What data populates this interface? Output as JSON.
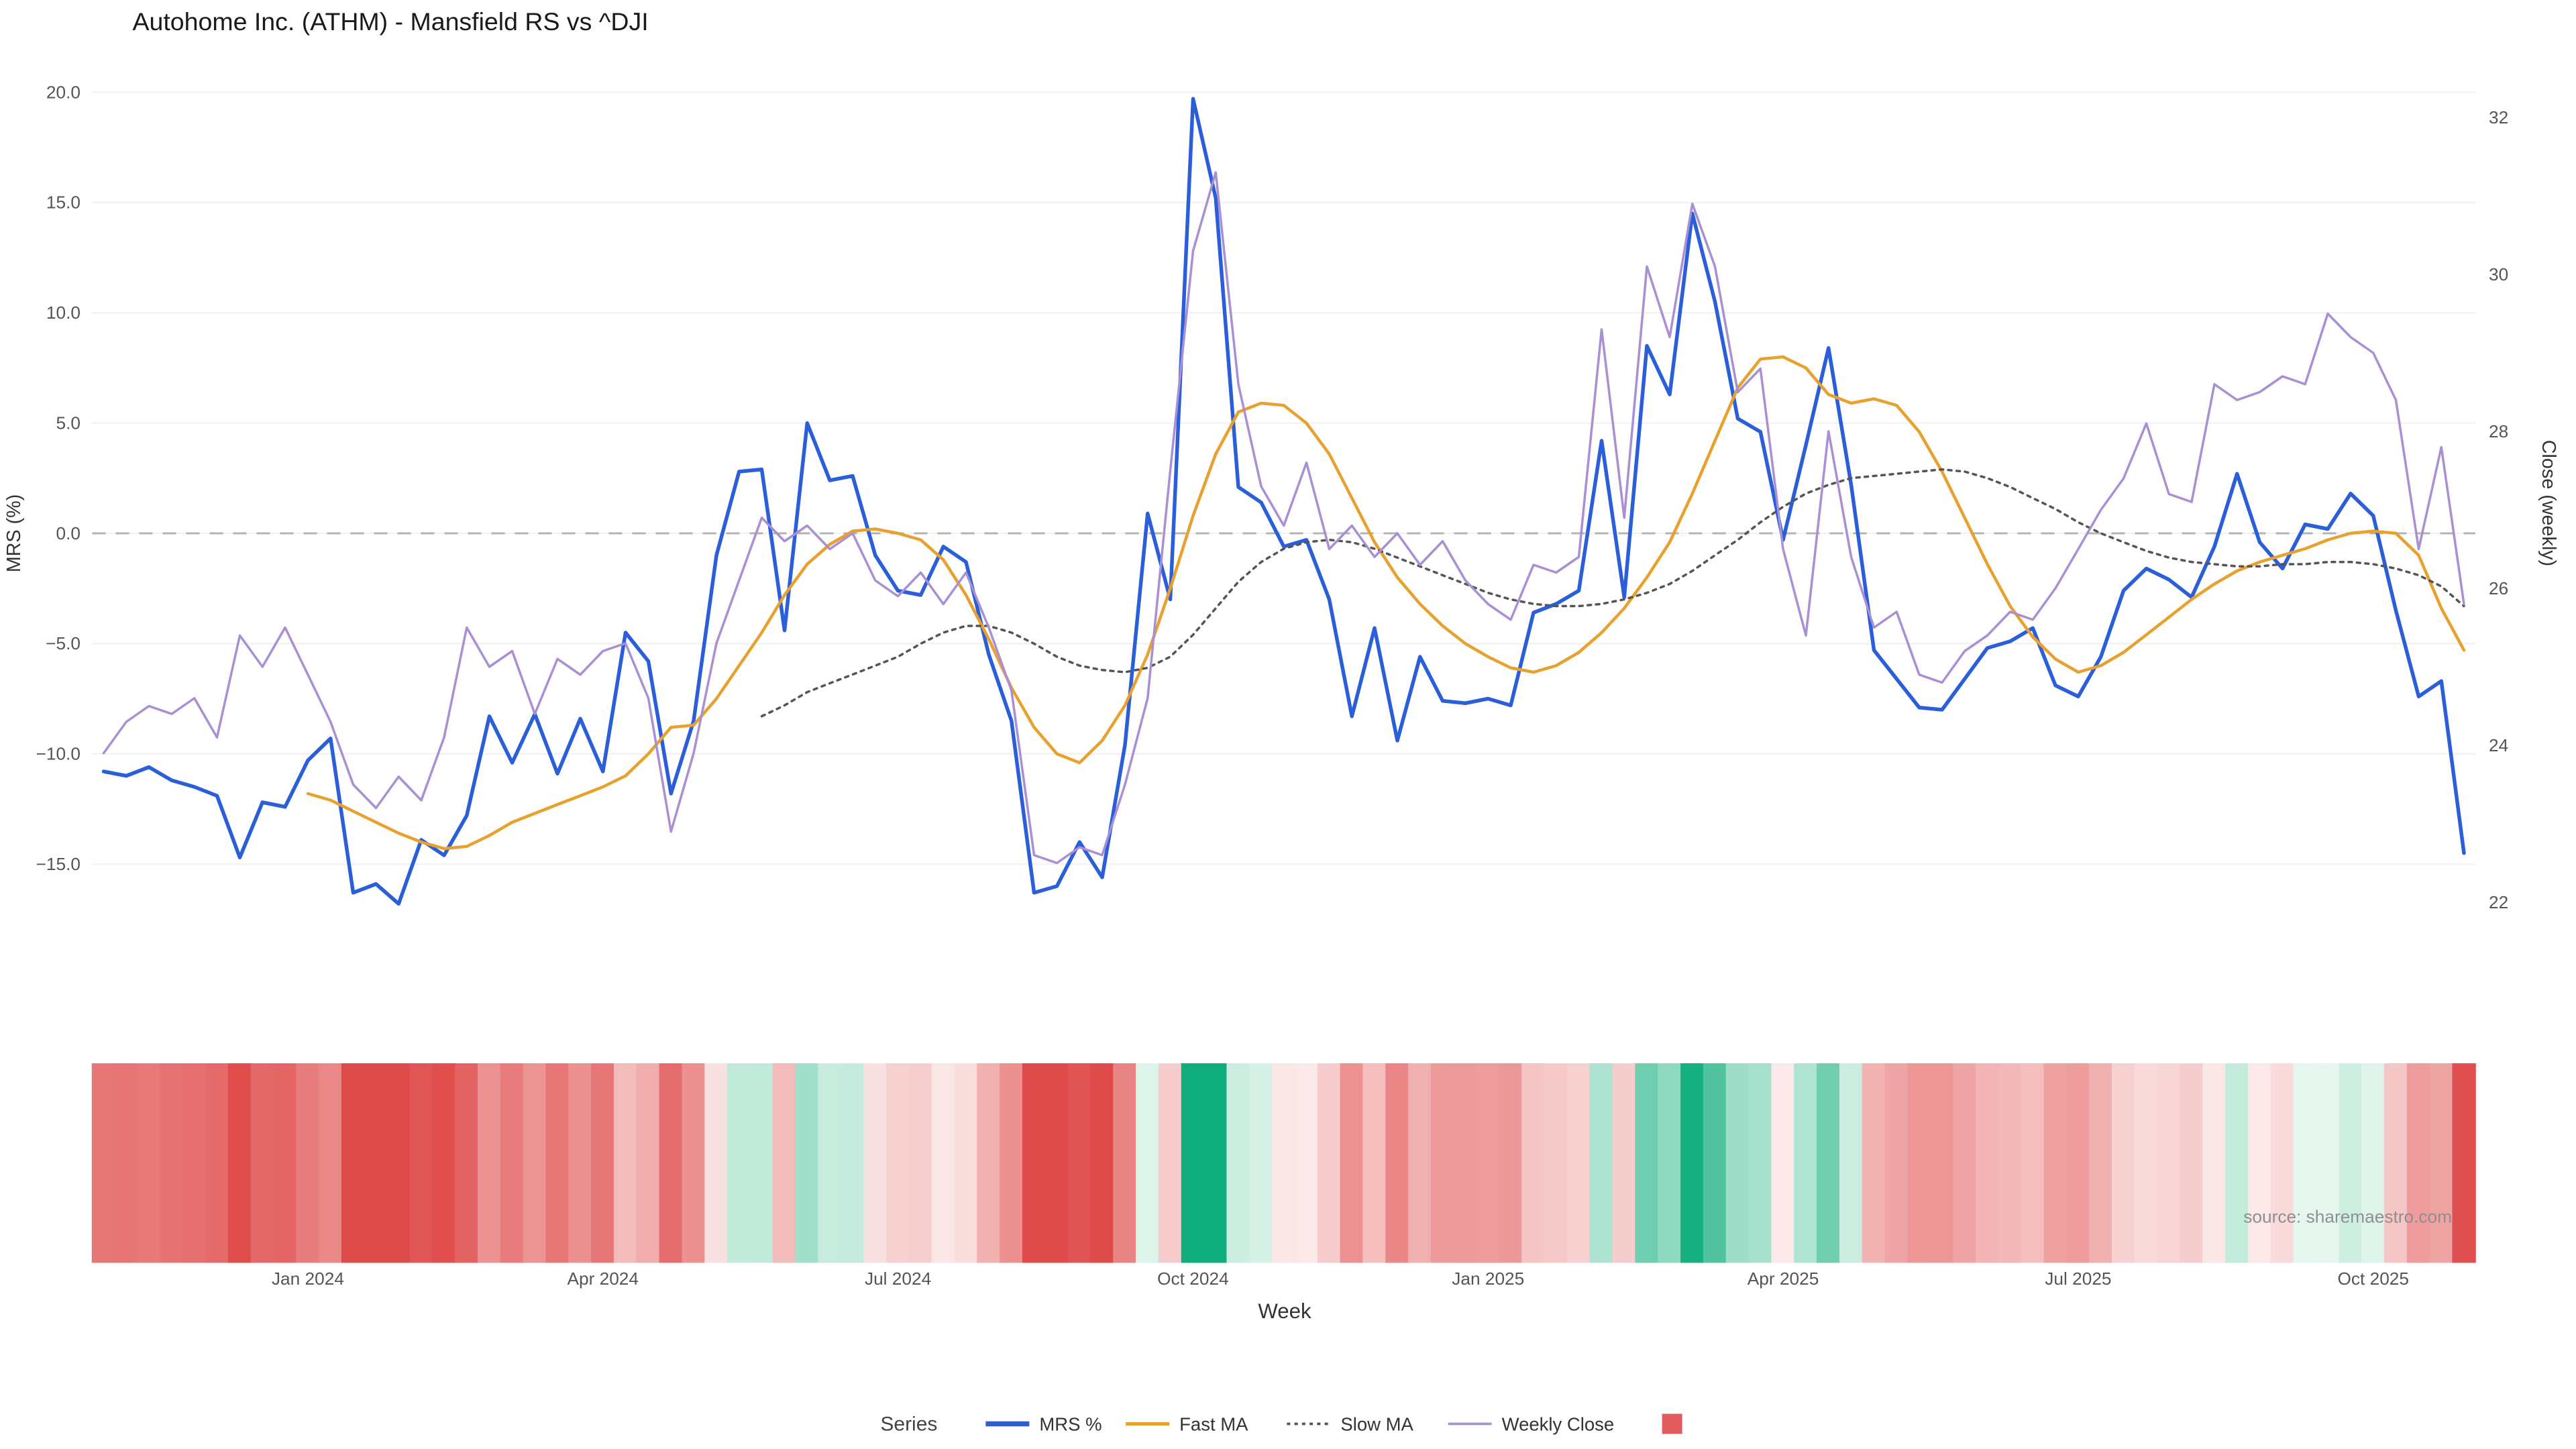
{
  "title": "Autohome Inc. (ATHM) - Mansfield RS vs ^DJI",
  "source_note": "source: sharemaestro.com",
  "axes": {
    "left_label": "MRS (%)",
    "right_label": "Close (weekly)",
    "x_label": "Week",
    "left_ticks": [
      {
        "value": 20,
        "label": "20.0"
      },
      {
        "value": 15,
        "label": "15.0"
      },
      {
        "value": 10,
        "label": "10.0"
      },
      {
        "value": 5,
        "label": "5.0"
      },
      {
        "value": 0,
        "label": "0.0"
      },
      {
        "value": -5,
        "label": "−5.0"
      },
      {
        "value": -10,
        "label": "−10.0"
      },
      {
        "value": -15,
        "label": "−15.0"
      }
    ],
    "right_ticks": [
      {
        "value": 32,
        "label": "32"
      },
      {
        "value": 30,
        "label": "30"
      },
      {
        "value": 28,
        "label": "28"
      },
      {
        "value": 26,
        "label": "26"
      },
      {
        "value": 24,
        "label": "24"
      },
      {
        "value": 22,
        "label": "22"
      }
    ],
    "x_ticks": [
      {
        "index": 9,
        "label": "Jan 2024"
      },
      {
        "index": 22,
        "label": "Apr 2024"
      },
      {
        "index": 35,
        "label": "Jul 2024"
      },
      {
        "index": 48,
        "label": "Oct 2024"
      },
      {
        "index": 61,
        "label": "Jan 2025"
      },
      {
        "index": 74,
        "label": "Apr 2025"
      },
      {
        "index": 87,
        "label": "Jul 2025"
      },
      {
        "index": 100,
        "label": "Oct 2025"
      }
    ]
  },
  "legend": {
    "title": "Series",
    "items": [
      {
        "label": "MRS %",
        "style": "solid",
        "color": "#2b5fd9",
        "width": 3
      },
      {
        "label": "Fast MA",
        "style": "solid",
        "color": "#e8a02e",
        "width": 2
      },
      {
        "label": "Slow MA",
        "style": "dotted",
        "color": "#555555",
        "width": 1.5
      },
      {
        "label": "Weekly Close",
        "style": "solid",
        "color": "#a98fd4",
        "width": 1.5
      },
      {
        "label": "",
        "style": "square",
        "color": "#e05c5c"
      }
    ]
  },
  "chart_data": {
    "type": "line",
    "x_unit": "week",
    "x_count": 105,
    "zero_line": true,
    "left_axis": {
      "label": "MRS (%)",
      "ticks": [
        20,
        15,
        10,
        5,
        0,
        -5,
        -10,
        -15
      ]
    },
    "right_axis": {
      "label": "Close (weekly)",
      "ticks": [
        32,
        30,
        28,
        26,
        24,
        22
      ]
    },
    "series": [
      {
        "name": "MRS %",
        "axis": "left",
        "color": "#2b5fd9",
        "style": "solid",
        "width": 2.2,
        "values": [
          -10.8,
          -11.0,
          -10.6,
          -11.2,
          -11.5,
          -11.9,
          -14.7,
          -12.2,
          -12.4,
          -10.3,
          -9.3,
          -16.3,
          -15.9,
          -16.8,
          -13.9,
          -14.6,
          -12.8,
          -8.3,
          -10.4,
          -8.2,
          -10.9,
          -8.4,
          -10.8,
          -4.5,
          -5.8,
          -11.8,
          -8.5,
          -1.0,
          2.8,
          2.9,
          -4.4,
          5.0,
          2.4,
          2.6,
          -1.0,
          -2.6,
          -2.8,
          -0.6,
          -1.3,
          -5.5,
          -8.5,
          -16.3,
          -16.0,
          -14.0,
          -15.6,
          -9.6,
          0.9,
          -3.0,
          19.7,
          15.2,
          2.1,
          1.4,
          -0.6,
          -0.3,
          -3.0,
          -8.3,
          -4.3,
          -9.4,
          -5.6,
          -7.6,
          -7.7,
          -7.5,
          -7.8,
          -3.6,
          -3.2,
          -2.6,
          4.2,
          -2.9,
          8.5,
          6.3,
          14.5,
          10.5,
          5.2,
          4.6,
          -0.3,
          4.0,
          8.4,
          2.2,
          -5.3,
          -6.6,
          -7.9,
          -8.0,
          -6.6,
          -5.2,
          -4.9,
          -4.3,
          -6.9,
          -7.4,
          -5.6,
          -2.6,
          -1.6,
          -2.1,
          -2.9,
          -0.6,
          2.7,
          -0.4,
          -1.6,
          0.4,
          0.2,
          1.8,
          0.8,
          -3.5,
          -7.4,
          -6.7,
          -14.5
        ]
      },
      {
        "name": "Fast MA",
        "axis": "left",
        "color": "#e8a02e",
        "style": "solid",
        "width": 1.8,
        "values": [
          null,
          null,
          null,
          null,
          null,
          null,
          null,
          null,
          null,
          -11.8,
          -12.1,
          -12.6,
          -13.1,
          -13.6,
          -14.0,
          -14.3,
          -14.2,
          -13.7,
          -13.1,
          -12.7,
          -12.3,
          -11.9,
          -11.5,
          -11.0,
          -10.0,
          -8.8,
          -8.7,
          -7.5,
          -6.0,
          -4.5,
          -2.8,
          -1.4,
          -0.5,
          0.1,
          0.2,
          0.0,
          -0.3,
          -1.2,
          -2.8,
          -4.8,
          -7.0,
          -8.8,
          -10.0,
          -10.4,
          -9.4,
          -7.8,
          -5.5,
          -2.5,
          0.8,
          3.6,
          5.5,
          5.9,
          5.8,
          5.0,
          3.6,
          1.6,
          -0.4,
          -2.0,
          -3.2,
          -4.2,
          -5.0,
          -5.6,
          -6.1,
          -6.3,
          -6.0,
          -5.4,
          -4.5,
          -3.4,
          -2.0,
          -0.4,
          1.8,
          4.2,
          6.6,
          7.9,
          8.0,
          7.5,
          6.3,
          5.9,
          6.1,
          5.8,
          4.6,
          2.8,
          0.7,
          -1.4,
          -3.3,
          -4.7,
          -5.7,
          -6.3,
          -6.0,
          -5.4,
          -4.6,
          -3.8,
          -3.0,
          -2.3,
          -1.7,
          -1.3,
          -1.0,
          -0.7,
          -0.3,
          0.0,
          0.1,
          0.0,
          -1.0,
          -3.4,
          -5.3
        ]
      },
      {
        "name": "Slow MA",
        "axis": "left",
        "color": "#555555",
        "style": "dotted",
        "width": 1.4,
        "values": [
          null,
          null,
          null,
          null,
          null,
          null,
          null,
          null,
          null,
          null,
          null,
          null,
          null,
          null,
          null,
          null,
          null,
          null,
          null,
          null,
          null,
          null,
          null,
          null,
          null,
          null,
          null,
          null,
          null,
          -8.3,
          -7.8,
          -7.2,
          -6.8,
          -6.4,
          -6.0,
          -5.6,
          -5.0,
          -4.5,
          -4.2,
          -4.2,
          -4.5,
          -5.0,
          -5.6,
          -6.0,
          -6.2,
          -6.3,
          -6.1,
          -5.6,
          -4.6,
          -3.4,
          -2.2,
          -1.3,
          -0.7,
          -0.4,
          -0.3,
          -0.4,
          -0.7,
          -1.1,
          -1.5,
          -1.9,
          -2.3,
          -2.7,
          -3.0,
          -3.2,
          -3.3,
          -3.3,
          -3.2,
          -3.0,
          -2.7,
          -2.3,
          -1.7,
          -1.0,
          -0.3,
          0.5,
          1.2,
          1.8,
          2.2,
          2.5,
          2.6,
          2.7,
          2.8,
          2.9,
          2.8,
          2.5,
          2.1,
          1.6,
          1.1,
          0.5,
          0.0,
          -0.4,
          -0.8,
          -1.1,
          -1.3,
          -1.4,
          -1.5,
          -1.5,
          -1.4,
          -1.4,
          -1.3,
          -1.3,
          -1.4,
          -1.6,
          -1.9,
          -2.4,
          -3.3
        ]
      },
      {
        "name": "Weekly Close",
        "axis": "right",
        "color": "#a98fd4",
        "style": "solid",
        "width": 1.4,
        "values": [
          23.9,
          24.3,
          24.5,
          24.4,
          24.6,
          24.1,
          25.4,
          25.0,
          25.5,
          24.9,
          24.3,
          23.5,
          23.2,
          23.6,
          23.3,
          24.1,
          25.5,
          25.0,
          25.2,
          24.4,
          25.1,
          24.9,
          25.2,
          25.3,
          24.6,
          22.9,
          23.9,
          25.3,
          26.1,
          26.9,
          26.6,
          26.8,
          26.5,
          26.7,
          26.1,
          25.9,
          26.2,
          25.8,
          26.2,
          25.5,
          24.7,
          22.6,
          22.5,
          22.7,
          22.6,
          23.5,
          24.6,
          27.5,
          30.3,
          31.3,
          28.6,
          27.3,
          26.8,
          27.6,
          26.5,
          26.8,
          26.4,
          26.7,
          26.3,
          26.6,
          26.1,
          25.8,
          25.6,
          26.3,
          26.2,
          26.4,
          29.3,
          26.9,
          30.1,
          29.2,
          30.9,
          30.1,
          28.5,
          28.8,
          26.5,
          25.4,
          28.0,
          26.4,
          25.5,
          25.7,
          24.9,
          24.8,
          25.2,
          25.4,
          25.7,
          25.6,
          26.0,
          26.5,
          27.0,
          27.4,
          28.1,
          27.2,
          27.1,
          28.6,
          28.4,
          28.5,
          28.7,
          28.6,
          29.5,
          29.2,
          29.0,
          28.4,
          26.5,
          27.8,
          25.8
        ]
      }
    ],
    "heatmap": {
      "basis": "MRS %",
      "description": "weekly strip colored by MRS % sign and magnitude",
      "negative_color": "#df4a4a",
      "negative_light": "#fcecec",
      "positive_color": "#10ad7c",
      "positive_light": "#eaf8f1",
      "max_abs": 15
    }
  }
}
